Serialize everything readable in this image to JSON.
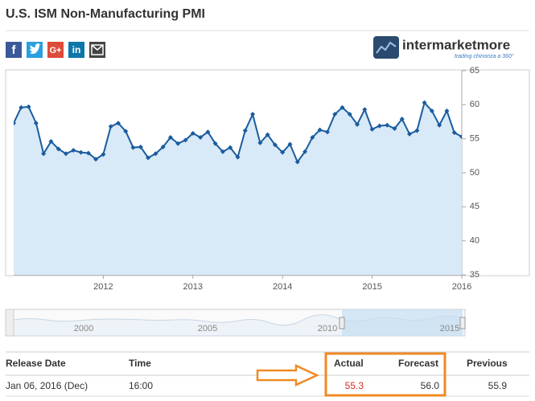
{
  "header": {
    "title": "U.S. ISM Non-Manufacturing PMI",
    "share_icons": [
      "f",
      "G+",
      "in"
    ],
    "logo": {
      "name": "intermarketmore",
      "tagline": "trading chinonza a 360°"
    }
  },
  "chart_data": {
    "type": "area",
    "color": "#1a5c9e",
    "fill": "#d8e9f8",
    "grid": false,
    "categories": [
      null,
      null,
      null,
      null,
      null,
      null,
      null,
      null,
      null,
      null,
      null,
      null,
      "2012",
      null,
      null,
      null,
      null,
      null,
      null,
      null,
      null,
      null,
      null,
      null,
      "2013",
      null,
      null,
      null,
      null,
      null,
      null,
      null,
      null,
      null,
      null,
      null,
      "2014",
      null,
      null,
      null,
      null,
      null,
      null,
      null,
      null,
      null,
      null,
      null,
      "2015",
      null,
      null,
      null,
      null,
      null,
      null,
      null,
      null,
      null,
      null,
      null,
      "2016"
    ],
    "values": [
      57.3,
      59.6,
      59.7,
      57.3,
      52.8,
      54.6,
      53.5,
      52.8,
      53.3,
      53.0,
      52.9,
      52.0,
      52.7,
      56.8,
      57.3,
      56.1,
      53.7,
      53.8,
      52.2,
      52.8,
      53.8,
      55.2,
      54.3,
      54.8,
      55.8,
      55.2,
      56.0,
      54.3,
      53.1,
      53.7,
      52.3,
      56.2,
      58.6,
      54.4,
      55.6,
      54.1,
      53.0,
      54.2,
      51.6,
      53.1,
      55.2,
      56.3,
      56.0,
      58.6,
      59.6,
      58.6,
      57.1,
      59.3,
      56.4,
      56.9,
      57.0,
      56.5,
      57.9,
      55.7,
      56.2,
      60.3,
      59.1,
      57.0,
      59.1,
      55.9,
      55.3
    ],
    "ylim": [
      35,
      65
    ],
    "yticks": [
      35,
      40,
      45,
      50,
      55,
      60,
      65
    ],
    "navigator_labels": [
      "2000",
      "2005",
      "2010",
      "2015"
    ]
  },
  "table": {
    "headers": [
      "Release Date",
      "Time",
      "Actual",
      "Forecast",
      "Previous"
    ],
    "rows": [
      [
        "Jan 06, 2016 (Dec)",
        "16:00",
        "55.3",
        "56.0",
        "55.9"
      ]
    ]
  }
}
